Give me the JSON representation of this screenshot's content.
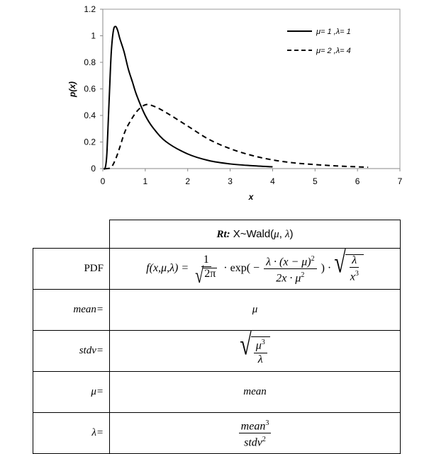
{
  "chart_data": {
    "type": "line",
    "xlabel": "x",
    "ylabel": "p(x)",
    "xlim": [
      0,
      7
    ],
    "ylim": [
      0,
      1.2
    ],
    "xticks": [
      0,
      1,
      2,
      3,
      4,
      5,
      6,
      7
    ],
    "yticks": [
      0,
      0.2,
      0.4,
      0.6,
      0.8,
      1,
      1.2
    ],
    "yticklabels": [
      "0",
      "0.2",
      "0.4",
      "0.6",
      "0.8",
      "1",
      "1.2"
    ],
    "grid": false,
    "legend_position": "top-right",
    "series": [
      {
        "name": "μ= 1 ,λ= 1",
        "style": "solid",
        "color": "#000000",
        "x": [
          0.02,
          0.05,
          0.08,
          0.1,
          0.13,
          0.16,
          0.2,
          0.25,
          0.3,
          0.35,
          0.4,
          0.5,
          0.6,
          0.7,
          0.8,
          1.0,
          1.2,
          1.5,
          2.0,
          2.5,
          3.0,
          3.5,
          4.0
        ],
        "y": [
          0.0,
          0.0,
          0.05,
          0.14,
          0.37,
          0.6,
          0.88,
          1.04,
          1.07,
          1.04,
          0.98,
          0.88,
          0.75,
          0.65,
          0.55,
          0.4,
          0.3,
          0.2,
          0.11,
          0.06,
          0.035,
          0.022,
          0.013
        ]
      },
      {
        "name": "μ= 2 ,λ= 4",
        "style": "dashed",
        "color": "#000000",
        "x": [
          0.05,
          0.1,
          0.2,
          0.3,
          0.4,
          0.5,
          0.6,
          0.8,
          1.0,
          1.2,
          1.5,
          2.0,
          2.5,
          3.0,
          3.5,
          4.0,
          4.5,
          5.0,
          5.5,
          6.0,
          6.25
        ],
        "y": [
          0.0,
          0.0,
          0.01,
          0.07,
          0.16,
          0.26,
          0.33,
          0.43,
          0.48,
          0.47,
          0.42,
          0.32,
          0.22,
          0.15,
          0.1,
          0.065,
          0.043,
          0.03,
          0.02,
          0.013,
          0.01
        ]
      }
    ]
  },
  "table": {
    "header": {
      "prefix": "Rt:",
      "main": " X~Wald(",
      "mu": "μ",
      "sep": ", ",
      "lambda": "λ",
      "close": ")"
    },
    "rows": [
      {
        "label": "PDF",
        "label_style": "plain"
      },
      {
        "label": "mean=",
        "label_style": "italic",
        "value": "μ"
      },
      {
        "label": "stdv=",
        "label_style": "italic"
      },
      {
        "label": "μ=",
        "label_style": "italic",
        "value": "mean"
      },
      {
        "label": "λ=",
        "label_style": "italic"
      }
    ],
    "pdf": {
      "lhs": "f(x,μ,λ) =",
      "one": "1",
      "twopi": "2π",
      "exp": "· exp( −",
      "lam": "λ · (x − μ)",
      "sq": "2",
      "den": "2x · μ",
      "den_sq": "2",
      "close": ") ·",
      "sqrt_num": "λ",
      "sqrt_den": "x",
      "cube": "3"
    },
    "stdv": {
      "num": "μ",
      "num_sup": "3",
      "den": "λ"
    },
    "lam_formula": {
      "num": "mean",
      "num_sup": "3",
      "den": "stdv",
      "den_sup": "2"
    }
  }
}
